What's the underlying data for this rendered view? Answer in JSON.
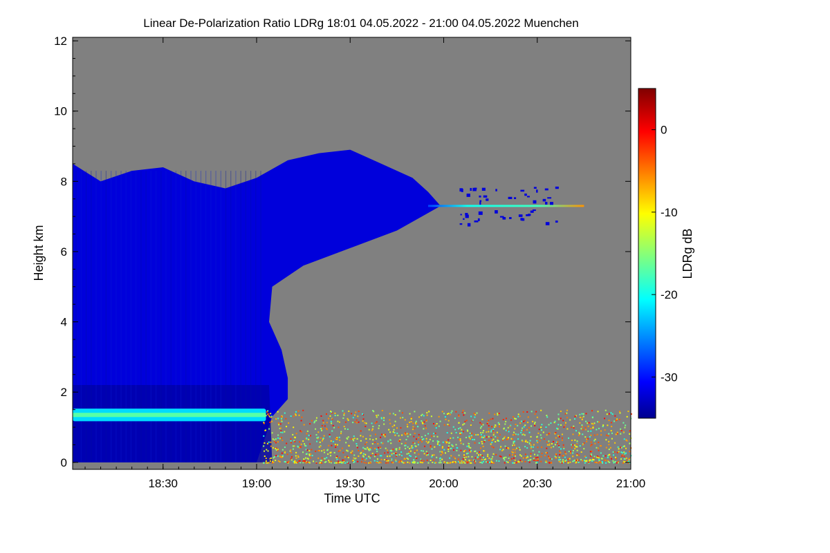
{
  "chart_data": {
    "type": "heatmap",
    "title": "Linear De-Polarization Ratio LDRg   18:01 04.05.2022 - 21:00 04.05.2022 Muenchen",
    "xlabel": "Time UTC",
    "ylabel": "Height km",
    "xlim_minutes_utc": [
      1081,
      1260
    ],
    "ylim_km": [
      -0.2,
      12.1
    ],
    "x_ticks": [
      {
        "minutes": 1110,
        "label": "18:30"
      },
      {
        "minutes": 1140,
        "label": "19:00"
      },
      {
        "minutes": 1170,
        "label": "19:30"
      },
      {
        "minutes": 1200,
        "label": "20:00"
      },
      {
        "minutes": 1230,
        "label": "20:30"
      },
      {
        "minutes": 1260,
        "label": "21:00"
      }
    ],
    "y_ticks": [
      {
        "value": 0,
        "label": "0"
      },
      {
        "value": 2,
        "label": "2"
      },
      {
        "value": 4,
        "label": "4"
      },
      {
        "value": 6,
        "label": "6"
      },
      {
        "value": 8,
        "label": "8"
      },
      {
        "value": 10,
        "label": "10"
      },
      {
        "value": 12,
        "label": "12"
      }
    ],
    "colorbar": {
      "label": "LDRg dB",
      "range": [
        -35,
        5
      ],
      "ticks": [
        {
          "value": 0,
          "label": "0"
        },
        {
          "value": -10,
          "label": "-10"
        },
        {
          "value": -20,
          "label": "-20"
        },
        {
          "value": -30,
          "label": "-30"
        }
      ]
    },
    "no_data_color": "#808080",
    "features": {
      "cirrus_cloud": {
        "ldr_db": -32,
        "top_km": [
          [
            1081,
            8.5
          ],
          [
            1090,
            8.0
          ],
          [
            1100,
            8.3
          ],
          [
            1110,
            8.4
          ],
          [
            1120,
            8.0
          ],
          [
            1130,
            7.8
          ],
          [
            1140,
            8.1
          ],
          [
            1150,
            8.6
          ],
          [
            1160,
            8.8
          ],
          [
            1170,
            8.9
          ],
          [
            1180,
            8.5
          ],
          [
            1190,
            8.1
          ],
          [
            1195,
            7.7
          ],
          [
            1199,
            7.3
          ]
        ],
        "base_km": [
          [
            1081,
            0.0
          ],
          [
            1120,
            0.0
          ],
          [
            1140,
            0.0
          ],
          [
            1145,
            1.3
          ],
          [
            1150,
            1.8
          ],
          [
            1150,
            2.4
          ],
          [
            1148,
            3.2
          ],
          [
            1144,
            4.0
          ],
          [
            1145,
            5.0
          ],
          [
            1155,
            5.6
          ],
          [
            1170,
            6.1
          ],
          [
            1185,
            6.6
          ],
          [
            1195,
            7.1
          ],
          [
            1199,
            7.3
          ]
        ]
      },
      "boundary_layer_band": {
        "ldr_db": -22,
        "height_km": 1.35,
        "time_range": [
          1081,
          1143
        ]
      },
      "thin_layer_7_3km": {
        "height_km": 7.3,
        "time_range": [
          1195,
          1245
        ],
        "ldr_db_range": [
          -28,
          -6
        ]
      },
      "aerosol_noise_region": {
        "time_range": [
          1141,
          1260
        ],
        "height_km": [
          0.0,
          1.5
        ],
        "ldr_db_range": [
          -20,
          0
        ]
      },
      "upper_cloud_fragments": {
        "ldr_db": -32,
        "time_range": [
          1205,
          1236
        ],
        "height_km": [
          6.8,
          7.9
        ]
      }
    }
  }
}
